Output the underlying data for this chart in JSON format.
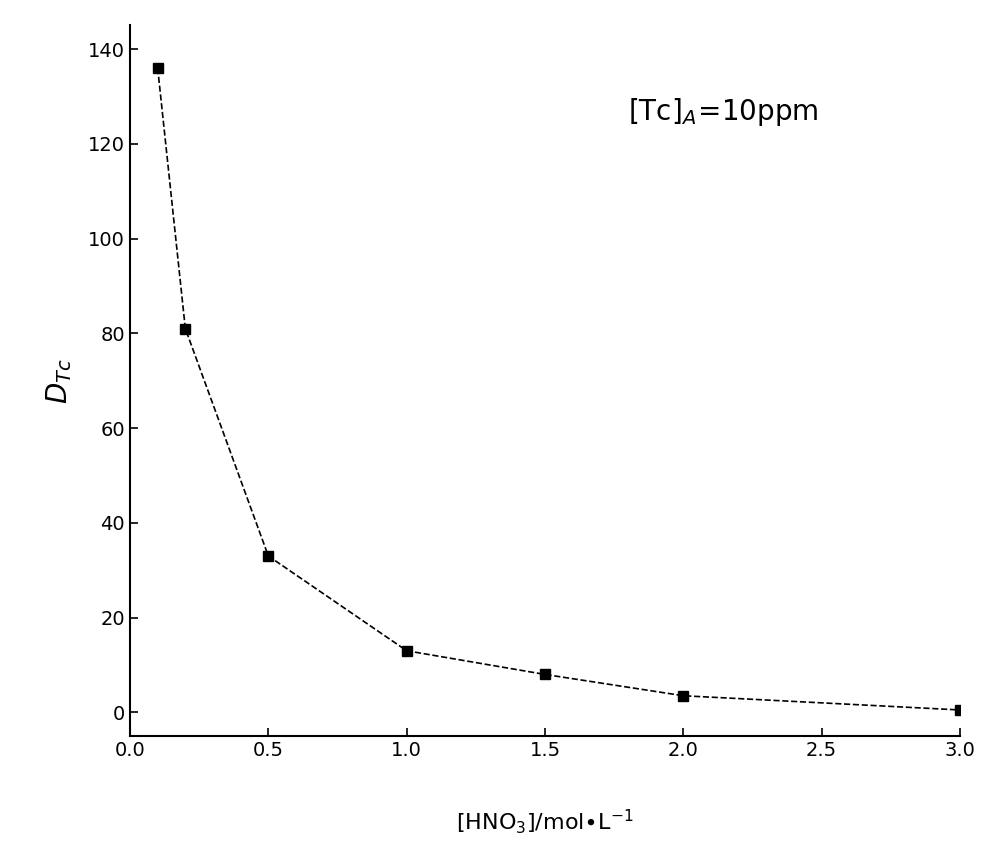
{
  "x_data": [
    0.1,
    0.2,
    0.5,
    1.0,
    1.5,
    2.0,
    3.0
  ],
  "y_data": [
    136,
    81,
    33,
    13,
    8,
    3.5,
    0.5
  ],
  "xlim": [
    0.0,
    3.0
  ],
  "ylim": [
    -5,
    145
  ],
  "xticks": [
    0.0,
    0.5,
    1.0,
    1.5,
    2.0,
    2.5,
    3.0
  ],
  "yticks": [
    0,
    20,
    40,
    60,
    80,
    100,
    120,
    140
  ],
  "line_color": "#000000",
  "marker_color": "#000000",
  "marker_style": "s",
  "marker_size": 7,
  "line_width": 1.2,
  "line_style": "--",
  "background_color": "#ffffff",
  "annotation_fontsize": 20,
  "axis_label_fontsize": 16,
  "tick_fontsize": 14
}
